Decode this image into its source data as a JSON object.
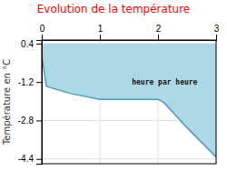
{
  "chart_data": {
    "type": "area",
    "title": "Evolution de la température",
    "title_color": "#ff0000",
    "ylabel": "Température en °C",
    "x": [
      0,
      0.08,
      0.5,
      1.0,
      1.5,
      2.0,
      2.1,
      2.5,
      3.0
    ],
    "values": [
      -0.1,
      -1.38,
      -1.68,
      -1.92,
      -1.92,
      -1.92,
      -2.05,
      -3.1,
      -4.32
    ],
    "fill_top": 0.4,
    "color": "#4aa0b8",
    "fill_color": "#add8e6",
    "xlim": [
      0,
      3
    ],
    "ylim": [
      -4.6,
      0.55
    ],
    "xticks": [
      0,
      1,
      2,
      3
    ],
    "yticks": [
      0.4,
      -1.2,
      -2.8,
      -4.4
    ],
    "grid": true,
    "annotations": [
      {
        "text": "heure par heure",
        "x": 1.55,
        "y": -1.05
      }
    ]
  }
}
